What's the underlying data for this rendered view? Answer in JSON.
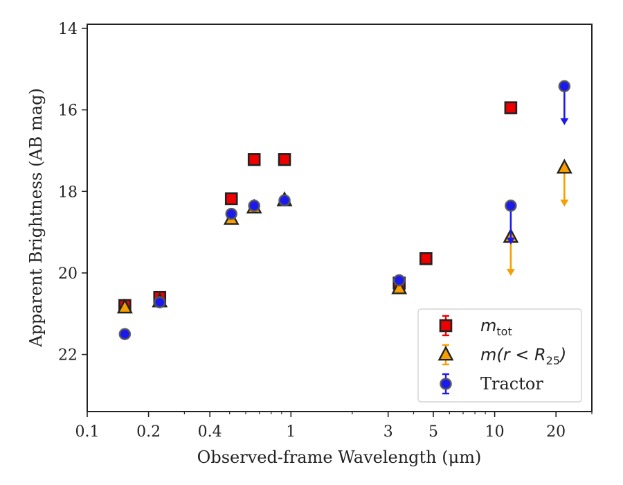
{
  "chart_data": {
    "type": "scatter",
    "title": "",
    "xlabel": "Observed-frame Wavelength (μm)",
    "ylabel": "Apparent Brightness (AB mag)",
    "x_scale": "log",
    "xlim": [
      0.1,
      30
    ],
    "ylim": [
      23.4,
      13.9
    ],
    "y_inverted": true,
    "grid": false,
    "legend_position": "lower-right",
    "x_ticks": [
      {
        "value": 0.1,
        "label": "0.1"
      },
      {
        "value": 0.2,
        "label": "0.2"
      },
      {
        "value": 0.4,
        "label": "0.4"
      },
      {
        "value": 1,
        "label": "1"
      },
      {
        "value": 3,
        "label": "3"
      },
      {
        "value": 5,
        "label": "5"
      },
      {
        "value": 10,
        "label": "10"
      },
      {
        "value": 20,
        "label": "20"
      }
    ],
    "y_ticks": [
      {
        "value": 14,
        "label": "14"
      },
      {
        "value": 16,
        "label": "16"
      },
      {
        "value": 18,
        "label": "18"
      },
      {
        "value": 20,
        "label": "20"
      },
      {
        "value": 22,
        "label": "22"
      }
    ],
    "series": [
      {
        "name": "m_tot",
        "name_math": "m",
        "name_sub": "tot",
        "marker": "square",
        "color": "#ee0000",
        "points": [
          {
            "x": 0.153,
            "y": 20.8
          },
          {
            "x": 0.227,
            "y": 20.6
          },
          {
            "x": 0.51,
            "y": 18.18
          },
          {
            "x": 0.66,
            "y": 17.22
          },
          {
            "x": 0.93,
            "y": 17.22
          },
          {
            "x": 3.4,
            "y": 20.25
          },
          {
            "x": 4.6,
            "y": 19.65
          },
          {
            "x": 12.0,
            "y": 15.95
          }
        ]
      },
      {
        "name": "m(r < R_25)",
        "name_math": "m(r < R",
        "name_sub": "25",
        "marker": "triangle",
        "color": "#f5a000",
        "points": [
          {
            "x": 0.153,
            "y": 20.85
          },
          {
            "x": 0.227,
            "y": 20.7
          },
          {
            "x": 0.51,
            "y": 18.68
          },
          {
            "x": 0.66,
            "y": 18.4
          },
          {
            "x": 0.93,
            "y": 18.22
          },
          {
            "x": 3.4,
            "y": 20.38
          },
          {
            "x": 12.0,
            "y": 19.12,
            "upper_limit": true
          },
          {
            "x": 22.0,
            "y": 17.42,
            "upper_limit": true
          }
        ]
      },
      {
        "name": "Tractor",
        "marker": "circle",
        "color": "#1a1aee",
        "points": [
          {
            "x": 0.153,
            "y": 21.5
          },
          {
            "x": 0.227,
            "y": 20.72
          },
          {
            "x": 0.51,
            "y": 18.55
          },
          {
            "x": 0.66,
            "y": 18.35
          },
          {
            "x": 0.93,
            "y": 18.22
          },
          {
            "x": 3.4,
            "y": 20.18
          },
          {
            "x": 12.0,
            "y": 18.35,
            "upper_limit": true
          },
          {
            "x": 22.0,
            "y": 15.42,
            "upper_limit": true
          }
        ]
      }
    ]
  }
}
